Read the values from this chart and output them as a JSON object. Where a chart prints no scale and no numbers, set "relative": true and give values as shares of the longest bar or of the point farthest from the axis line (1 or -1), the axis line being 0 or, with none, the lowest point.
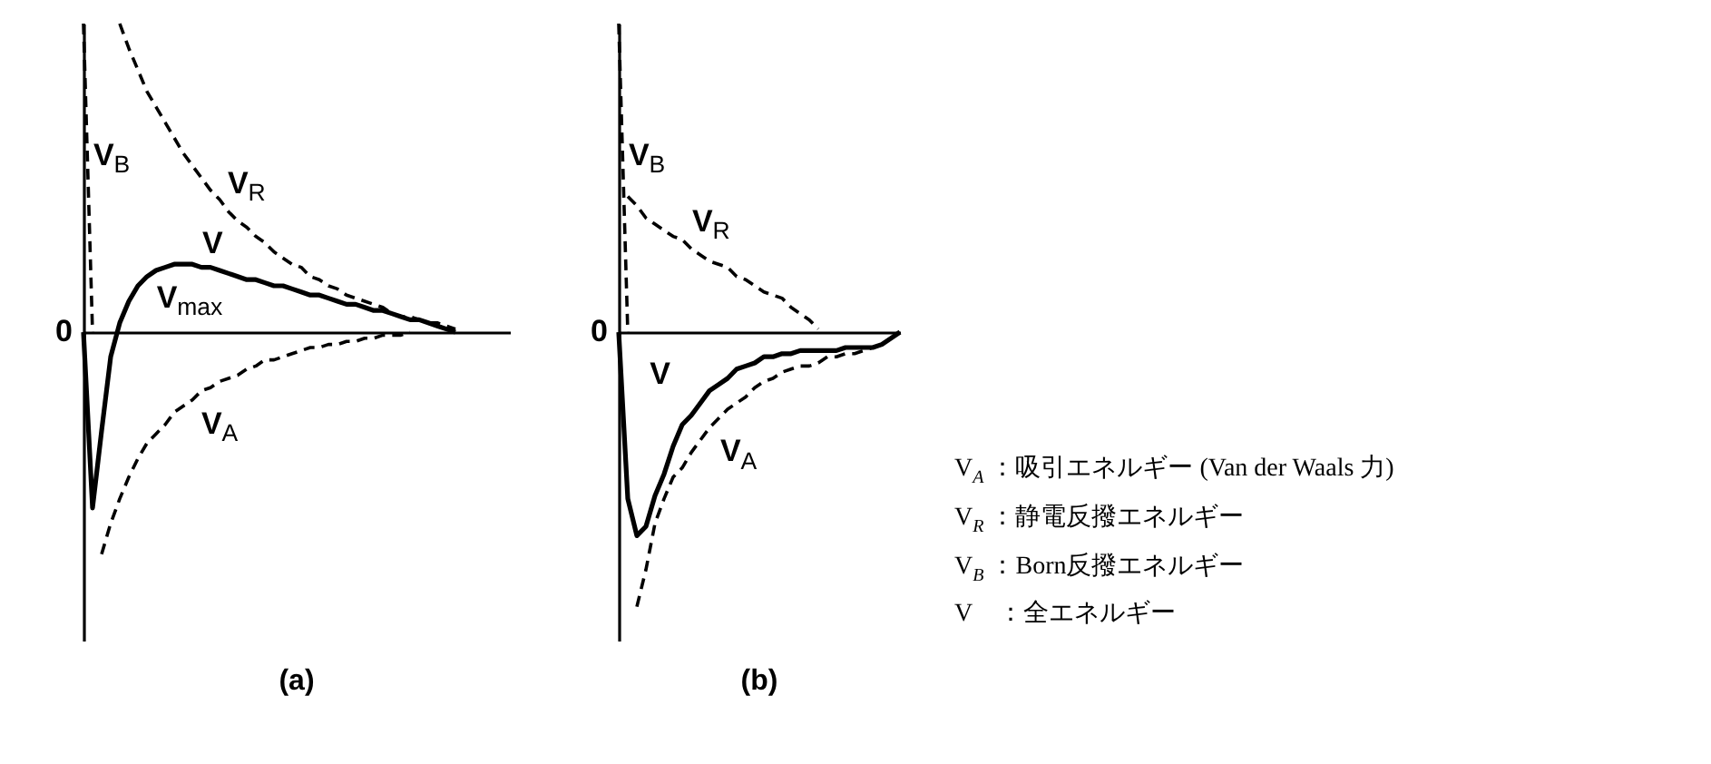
{
  "chart_data": [
    {
      "type": "line",
      "title": "(a)",
      "relative": true,
      "categories": [
        null,
        null,
        null,
        null,
        null,
        null,
        null,
        null,
        null,
        null,
        null,
        null,
        null,
        null,
        null,
        null,
        null,
        null,
        null,
        null,
        null,
        null,
        null,
        null,
        null,
        null,
        null,
        null,
        null,
        null,
        null,
        null,
        null,
        null,
        null,
        null,
        null,
        null,
        null,
        null,
        null,
        null,
        null,
        null,
        null,
        null,
        null,
        null
      ],
      "series": [
        {
          "name": "V$_{B}$",
          "color": "#000000",
          "line_style": "dashed",
          "values": [
            1,
            0,
            null,
            null,
            null,
            null,
            null,
            null,
            null,
            null,
            null,
            null,
            null,
            null,
            null,
            null,
            null,
            null,
            null,
            null,
            null,
            null,
            null,
            null,
            null,
            null,
            null,
            null,
            null,
            null,
            null,
            null,
            null,
            null,
            null,
            null,
            null,
            null,
            null,
            null,
            null,
            null,
            null,
            null,
            null,
            null,
            null,
            null
          ]
        },
        {
          "name": "V$_{R}$",
          "color": "#000000",
          "line_style": "dashed",
          "values": [
            null,
            null,
            null,
            null,
            1,
            0.92,
            0.85,
            0.78,
            0.73,
            0.68,
            0.63,
            0.58,
            0.54,
            0.5,
            0.46,
            0.43,
            0.39,
            0.36,
            0.34,
            0.31,
            0.29,
            0.26,
            0.24,
            0.22,
            0.21,
            0.18,
            0.17,
            0.15,
            0.14,
            0.12,
            0.11,
            0.1,
            0.09,
            0.08,
            0.06,
            0.05,
            0.05,
            0.04,
            0.03,
            0.03,
            0.02,
            0.01,
            null,
            null,
            null,
            null,
            null,
            null
          ]
        },
        {
          "name": "V",
          "color": "#000000",
          "line_style": "solid",
          "values": [
            0,
            -0.57,
            -0.32,
            -0.08,
            0.03,
            0.1,
            0.15,
            0.18,
            0.2,
            0.21,
            0.22,
            0.22,
            0.22,
            0.21,
            0.21,
            0.2,
            0.19,
            0.18,
            0.17,
            0.17,
            0.16,
            0.15,
            0.15,
            0.14,
            0.13,
            0.12,
            0.12,
            0.11,
            0.1,
            0.09,
            0.09,
            0.08,
            0.07,
            0.07,
            0.06,
            0.05,
            0.04,
            0.04,
            0.03,
            0.02,
            0.01,
            0,
            null,
            null,
            null,
            null,
            null,
            null
          ]
        },
        {
          "name": "V$_{A}$",
          "color": "#000000",
          "line_style": "dashed",
          "values": [
            null,
            null,
            -0.72,
            -0.62,
            -0.54,
            -0.47,
            -0.41,
            -0.36,
            -0.33,
            -0.3,
            -0.26,
            -0.24,
            -0.22,
            -0.19,
            -0.18,
            -0.16,
            -0.15,
            -0.14,
            -0.12,
            -0.11,
            -0.09,
            -0.09,
            -0.08,
            -0.07,
            -0.06,
            -0.05,
            -0.05,
            -0.04,
            -0.04,
            -0.03,
            -0.03,
            -0.02,
            -0.02,
            -0.01,
            -0.01,
            -0.01,
            0,
            null,
            null,
            null,
            null,
            null,
            null,
            null,
            null,
            null,
            null,
            null
          ]
        }
      ],
      "annotations": [
        "0",
        "V$_{max}$"
      ]
    },
    {
      "type": "line",
      "title": "(b)",
      "relative": true,
      "categories": [
        null,
        null,
        null,
        null,
        null,
        null,
        null,
        null,
        null,
        null,
        null,
        null,
        null,
        null,
        null,
        null,
        null,
        null,
        null,
        null,
        null,
        null,
        null,
        null,
        null,
        null,
        null,
        null,
        null,
        null,
        null,
        null
      ],
      "series": [
        {
          "name": "V$_{B}$",
          "color": "#000000",
          "line_style": "dashed",
          "values": [
            1,
            0,
            null,
            null,
            null,
            null,
            null,
            null,
            null,
            null,
            null,
            null,
            null,
            null,
            null,
            null,
            null,
            null,
            null,
            null,
            null,
            null,
            null,
            null,
            null,
            null,
            null,
            null,
            null,
            null,
            null,
            null
          ]
        },
        {
          "name": "V$_{R}$",
          "color": "#000000",
          "line_style": "dashed",
          "values": [
            null,
            0.44,
            0.41,
            0.37,
            0.35,
            0.33,
            0.31,
            0.3,
            0.27,
            0.25,
            0.23,
            0.22,
            0.21,
            0.18,
            0.17,
            0.15,
            0.13,
            0.12,
            0.11,
            0.08,
            0.06,
            0.04,
            0.01,
            null,
            null,
            null,
            null,
            null,
            null,
            null,
            null,
            null
          ]
        },
        {
          "name": "V",
          "color": "#000000",
          "line_style": "solid",
          "values": [
            0,
            -0.54,
            -0.66,
            -0.63,
            -0.53,
            -0.46,
            -0.37,
            -0.3,
            -0.27,
            -0.23,
            -0.19,
            -0.17,
            -0.15,
            -0.12,
            -0.11,
            -0.1,
            -0.08,
            -0.08,
            -0.07,
            -0.07,
            -0.06,
            -0.06,
            -0.06,
            -0.06,
            -0.06,
            -0.05,
            -0.05,
            -0.05,
            -0.05,
            -0.04,
            -0.02,
            0
          ]
        },
        {
          "name": "V$_{A}$",
          "color": "#000000",
          "line_style": "dashed",
          "values": [
            null,
            null,
            -0.89,
            -0.77,
            -0.62,
            -0.54,
            -0.47,
            -0.44,
            -0.39,
            -0.35,
            -0.31,
            -0.28,
            -0.25,
            -0.23,
            -0.21,
            -0.18,
            -0.16,
            -0.15,
            -0.13,
            -0.12,
            -0.11,
            -0.11,
            -0.1,
            -0.08,
            -0.08,
            -0.07,
            -0.07,
            -0.06,
            -0.05,
            -0.04,
            -0.02,
            null
          ]
        }
      ],
      "annotations": [
        "0"
      ]
    },
    {
      "type": "other",
      "annotations": [
        "V$_{A}$ ：吸引エネルギー (Van der Waals 力)",
        "V$_{R}$ ：静電反撥エネルギー",
        "V$_{B}$ ：Born反撥エネルギー",
        "V　：全エネルギー"
      ]
    }
  ]
}
